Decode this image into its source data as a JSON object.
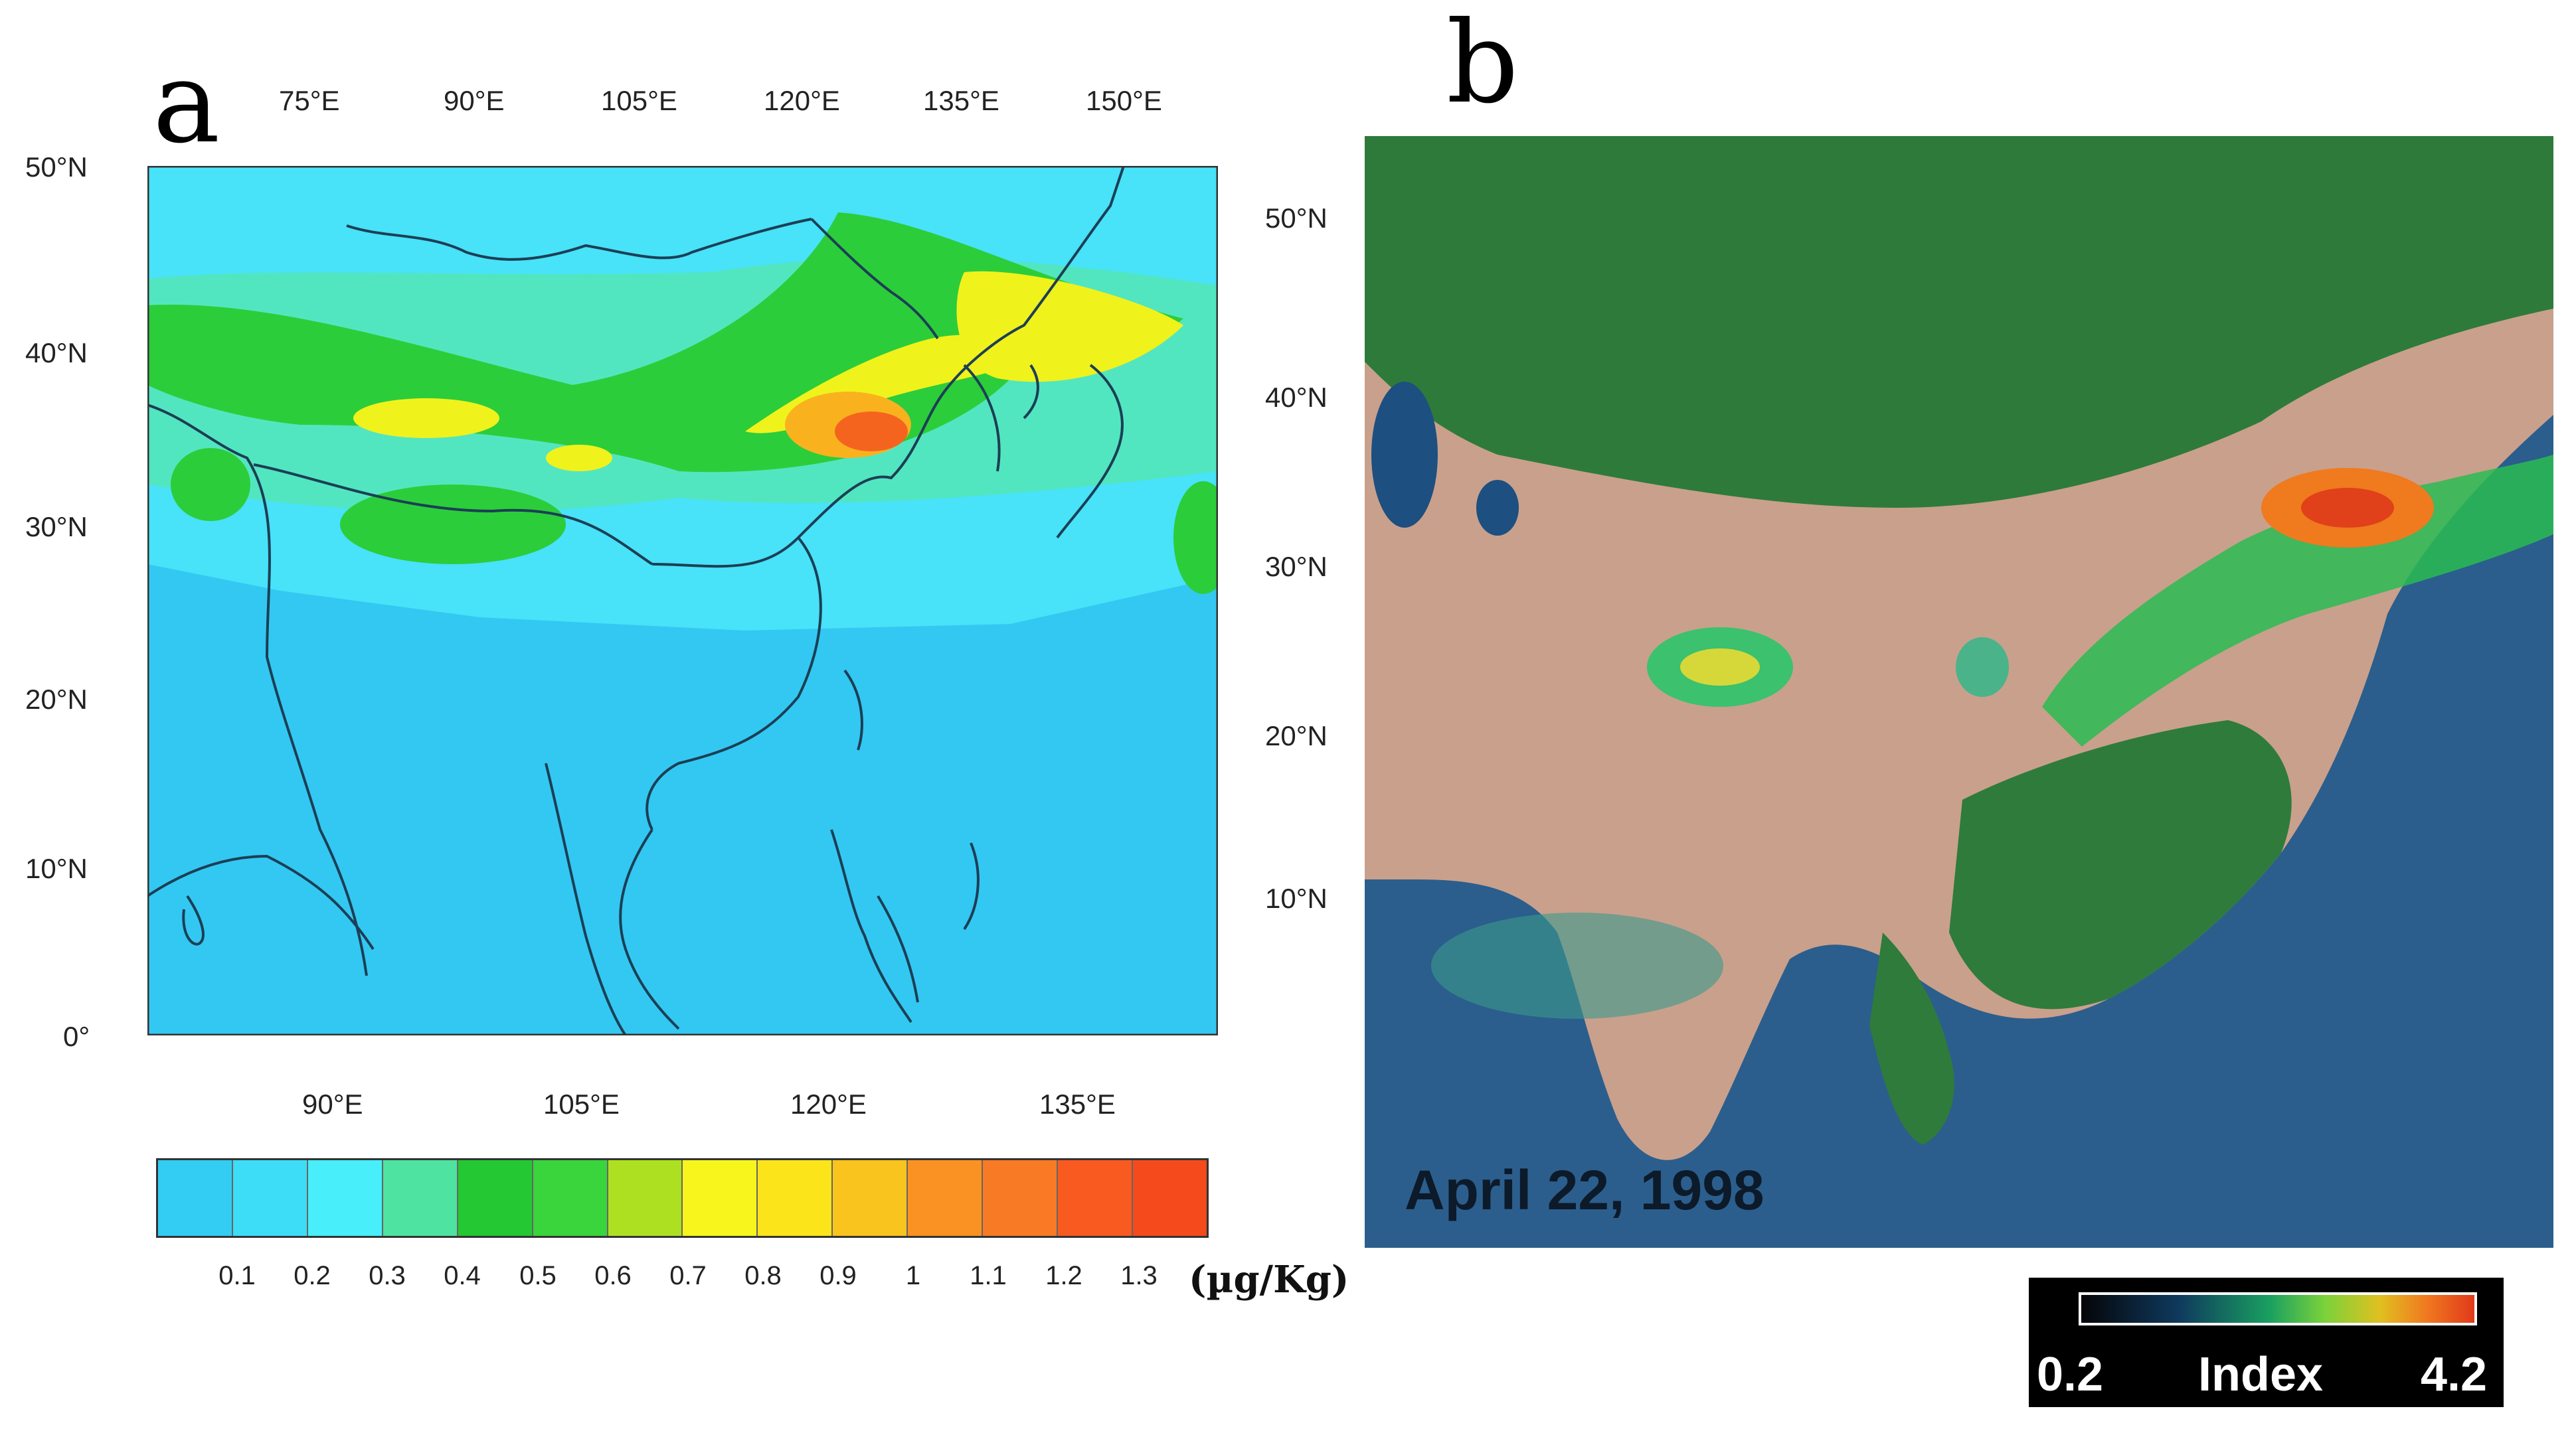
{
  "panel_a": {
    "letter": "a",
    "top_lon_ticks": [
      "75°E",
      "90°E",
      "105°E",
      "120°E",
      "135°E",
      "150°E"
    ],
    "bottom_lon_ticks": [
      "90°E",
      "105°E",
      "120°E",
      "135°E"
    ],
    "left_lat_ticks": [
      "50°N",
      "40°N",
      "30°N",
      "20°N",
      "10°N",
      "0°"
    ],
    "right_lat_ticks": [
      "50°N",
      "40°N",
      "30°N",
      "20°N",
      "10°N"
    ],
    "colorbar": {
      "labels": [
        "0.1",
        "0.2",
        "0.3",
        "0.4",
        "0.5",
        "0.6",
        "0.7",
        "0.8",
        "0.9",
        "1",
        "1.1",
        "1.2",
        "1.3"
      ],
      "colors": [
        "#33ccf2",
        "#3dddf7",
        "#48eef9",
        "#4ee3a0",
        "#23c832",
        "#3ad43c",
        "#aee022",
        "#f7f51c",
        "#fbe41a",
        "#f9c41e",
        "#f99222",
        "#f87a24",
        "#f85a20",
        "#f44a1c"
      ],
      "unit": "(µg/Kg)"
    }
  },
  "panel_b": {
    "letter": "b",
    "date": "April 22, 1998",
    "index_min": "0.2",
    "index_label": "Index",
    "index_max": "4.2"
  }
}
